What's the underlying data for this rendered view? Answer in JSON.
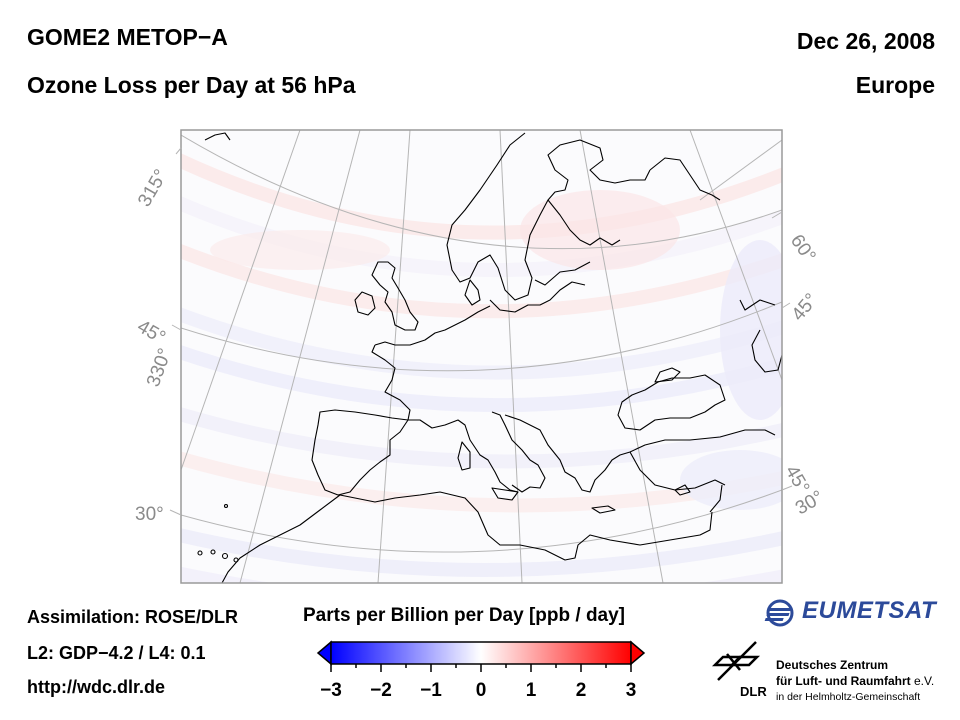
{
  "header": {
    "instrument": "GOME2 METOP−A",
    "product": "Ozone Loss per Day at 56 hPa",
    "date": "Dec 26, 2008",
    "region": "Europe"
  },
  "footer": {
    "assimilation": "Assimilation: ROSE/DLR",
    "versions": "L2: GDP−4.2 / L4: 0.1",
    "url": "http://wdc.dlr.de"
  },
  "map": {
    "projection": "polar stereographic (Europe)",
    "left_labels": [
      {
        "text": "315°",
        "kind": "longitude"
      },
      {
        "text": "45°",
        "kind": "latitude"
      },
      {
        "text": "330°",
        "kind": "longitude"
      },
      {
        "text": "30°",
        "kind": "latitude"
      }
    ],
    "right_labels": [
      {
        "text": "60°",
        "kind": "longitude"
      },
      {
        "text": "45°",
        "kind": "longitude"
      },
      {
        "text": "45°",
        "kind": "latitude"
      },
      {
        "text": "30°",
        "kind": "longitude"
      }
    ],
    "field_description": "near-zero values; faint red bands in north (Scandinavia/Russia), faint blue bands in west and south-east"
  },
  "colorbar": {
    "title": "Parts per Billion per Day [ppb / day]",
    "min": -3,
    "max": 3,
    "ticks": [
      "−3",
      "−2",
      "−1",
      "0",
      "1",
      "2",
      "3"
    ],
    "colors": {
      "low": "#0000ff",
      "mid": "#ffffff",
      "high": "#ff0000"
    },
    "extend": "both"
  },
  "logos": {
    "eumetsat": "EUMETSAT",
    "dlr_abbrev": "DLR",
    "dlr_line1": "Deutsches Zentrum",
    "dlr_line2": "für Luft- und Raumfahrt",
    "dlr_ev": "e.V.",
    "dlr_line3": "in der Helmholtz-Gemeinschaft"
  }
}
